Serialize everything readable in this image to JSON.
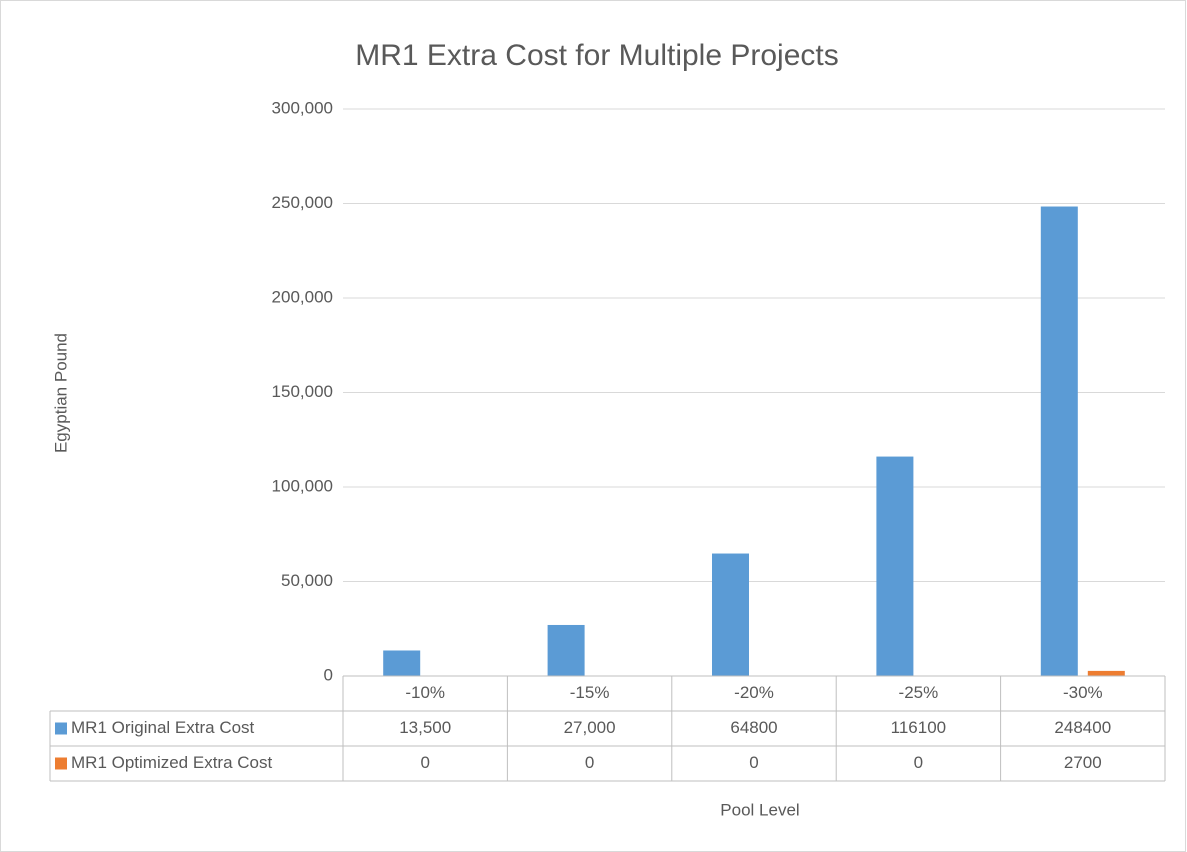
{
  "chart_data": {
    "type": "bar",
    "title": "MR1 Extra Cost  for Multiple Projects",
    "x_label": "Pool Level",
    "y_label": "Egyptian Pound",
    "categories": [
      "-10%",
      "-15%",
      "-20%",
      "-25%",
      "-30%"
    ],
    "series": [
      {
        "name": "MR1 Original Extra Cost",
        "color": "#5b9bd5",
        "values": [
          13500,
          27000,
          64800,
          116100,
          248400
        ],
        "value_labels": [
          "13,500",
          "27,000",
          "64800",
          "116100",
          "248400"
        ]
      },
      {
        "name": "MR1 Optimized Extra Cost",
        "color": "#ed7d31",
        "values": [
          0,
          0,
          0,
          0,
          2700
        ]
      }
    ],
    "ylim": [
      0,
      300000
    ],
    "yticks": [
      0,
      {
        "value": 50000,
        "label": "50,000"
      },
      {
        "value": 100000,
        "label": "100,000"
      },
      {
        "value": 150000,
        "label": "150,000"
      },
      {
        "value": 200000,
        "label": "200,000"
      },
      {
        "value": 250000,
        "label": "250,000"
      },
      {
        "value": 300000,
        "label": "300,000"
      }
    ],
    "grid": true,
    "data_table": true
  }
}
